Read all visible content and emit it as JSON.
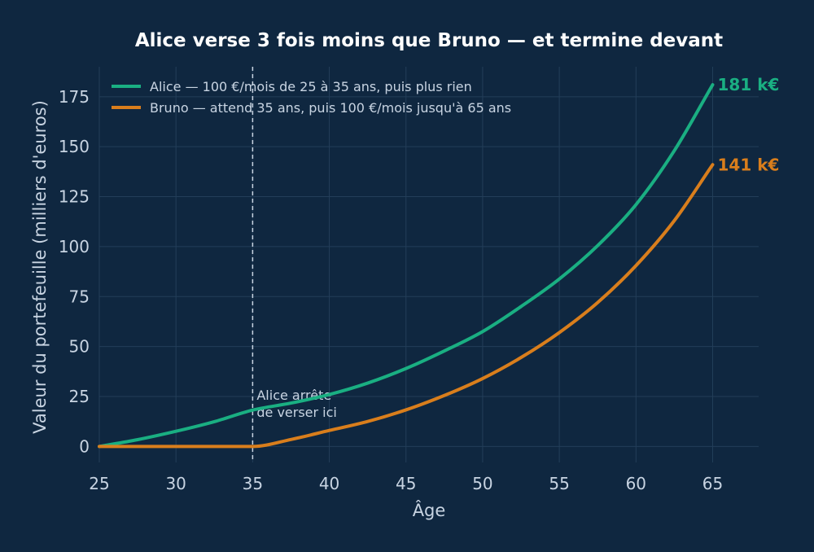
{
  "chart_data": {
    "type": "line",
    "title": "Alice verse 3 fois moins que Bruno — et termine devant",
    "xlabel": "Âge",
    "ylabel": "Valeur du portefeuille (milliers d'euros)",
    "xlim": [
      25,
      68
    ],
    "ylim": [
      -8,
      190
    ],
    "xticks": [
      25,
      30,
      35,
      40,
      45,
      50,
      55,
      60,
      65
    ],
    "yticks": [
      0,
      25,
      50,
      75,
      100,
      125,
      150,
      175
    ],
    "grid": true,
    "legend_position": "top-left",
    "annotation": {
      "lines": [
        "Alice arrête",
        "de verser ici"
      ],
      "x": 35
    },
    "vline_x": 35,
    "x": [
      25,
      27.5,
      30,
      32.5,
      35,
      37.5,
      40,
      42.5,
      45,
      47.5,
      50,
      52.5,
      55,
      57.5,
      60,
      62.5,
      65
    ],
    "series": [
      {
        "name": "Alice — 100 €/mois de 25 à 35 ans, puis plus rien",
        "color": "#1aaf82",
        "values": [
          0,
          3.4,
          7.6,
          12.4,
          18.2,
          21.7,
          26.0,
          31.7,
          39.0,
          47.8,
          57.5,
          70.0,
          83.8,
          100.5,
          121.0,
          148.0,
          181.0
        ],
        "end_label": "181 k€"
      },
      {
        "name": "Bruno — attend 35 ans, puis 100 €/mois jusqu'à 65 ans",
        "color": "#d97e1c",
        "values": [
          0,
          0,
          0,
          0,
          0,
          3.5,
          8.0,
          12.5,
          18.3,
          25.5,
          34.0,
          44.5,
          57.0,
          72.0,
          90.5,
          113.0,
          141.0
        ],
        "end_label": "141 k€"
      }
    ]
  }
}
